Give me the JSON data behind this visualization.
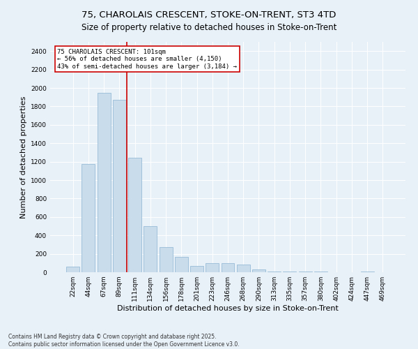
{
  "title": "75, CHAROLAIS CRESCENT, STOKE-ON-TRENT, ST3 4TD",
  "subtitle": "Size of property relative to detached houses in Stoke-on-Trent",
  "xlabel": "Distribution of detached houses by size in Stoke-on-Trent",
  "ylabel": "Number of detached properties",
  "categories": [
    "22sqm",
    "44sqm",
    "67sqm",
    "89sqm",
    "111sqm",
    "134sqm",
    "156sqm",
    "178sqm",
    "201sqm",
    "223sqm",
    "246sqm",
    "268sqm",
    "290sqm",
    "313sqm",
    "335sqm",
    "357sqm",
    "380sqm",
    "402sqm",
    "424sqm",
    "447sqm",
    "469sqm"
  ],
  "values": [
    60,
    1175,
    1950,
    1875,
    1240,
    500,
    270,
    165,
    70,
    100,
    95,
    85,
    30,
    10,
    10,
    5,
    5,
    2,
    2,
    5,
    2
  ],
  "bar_color": "#c9dcec",
  "bar_edge_color": "#8ab4d0",
  "red_line_color": "#cc0000",
  "annotation_text": "75 CHAROLAIS CRESCENT: 101sqm\n← 56% of detached houses are smaller (4,150)\n43% of semi-detached houses are larger (3,184) →",
  "annotation_box_color": "#ffffff",
  "annotation_box_edge": "#cc0000",
  "footer_line1": "Contains HM Land Registry data © Crown copyright and database right 2025.",
  "footer_line2": "Contains public sector information licensed under the Open Government Licence v3.0.",
  "ylim": [
    0,
    2500
  ],
  "yticks": [
    0,
    200,
    400,
    600,
    800,
    1000,
    1200,
    1400,
    1600,
    1800,
    2000,
    2200,
    2400
  ],
  "background_color": "#e8f0f8",
  "plot_bg_color": "#e8f0f8",
  "title_fontsize": 9.5,
  "tick_fontsize": 6.5,
  "label_fontsize": 8,
  "footer_fontsize": 5.5
}
